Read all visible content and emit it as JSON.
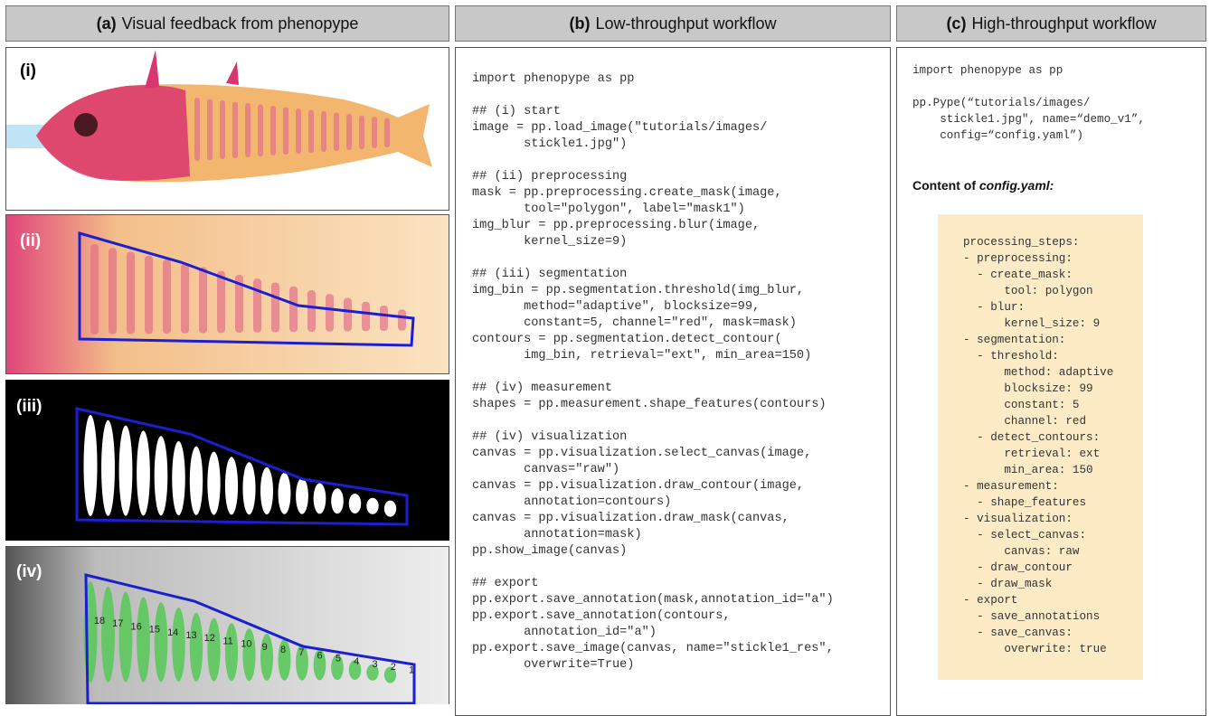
{
  "panel_a": {
    "label": "(a)",
    "title": "Visual feedback from phenopype",
    "images": [
      {
        "label": "(i)"
      },
      {
        "label": "(ii)"
      },
      {
        "label": "(iii)"
      },
      {
        "label": "(iv)"
      }
    ],
    "contour_numbers": [
      "18",
      "17",
      "16",
      "15",
      "14",
      "13",
      "12",
      "11",
      "10",
      "9",
      "8",
      "7",
      "6",
      "5",
      "4",
      "3",
      "2",
      "1"
    ]
  },
  "panel_b": {
    "label": "(b)",
    "title": "Low-throughput workflow",
    "code_blocks": [
      [
        "import phenopype as pp"
      ],
      [
        "## (i) start",
        "image = pp.load_image(\"tutorials/images/",
        "       stickle1.jpg\")"
      ],
      [
        "## (ii) preprocessing",
        "mask = pp.preprocessing.create_mask(image,",
        "       tool=\"polygon\", label=\"mask1\")",
        "img_blur = pp.preprocessing.blur(image,",
        "       kernel_size=9)"
      ],
      [
        "## (iii) segmentation",
        "img_bin = pp.segmentation.threshold(img_blur,",
        "       method=\"adaptive\", blocksize=99,",
        "       constant=5, channel=\"red\", mask=mask)",
        "contours = pp.segmentation.detect_contour(",
        "       img_bin, retrieval=\"ext\", min_area=150)"
      ],
      [
        "## (iv) measurement",
        "shapes = pp.measurement.shape_features(contours)"
      ],
      [
        "## (iv) visualization",
        "canvas = pp.visualization.select_canvas(image,",
        "       canvas=\"raw\")",
        "canvas = pp.visualization.draw_contour(image,",
        "       annotation=contours)",
        "canvas = pp.visualization.draw_mask(canvas,",
        "       annotation=mask)",
        "pp.show_image(canvas)"
      ],
      [
        "## export",
        "pp.export.save_annotation(mask,annotation_id=\"a\")",
        "pp.export.save_annotation(contours,",
        "       annotation_id=\"a\")",
        "pp.export.save_image(canvas, name=\"stickle1_res\",",
        "       overwrite=True)"
      ]
    ]
  },
  "panel_c": {
    "label": "(c)",
    "title": "High-throughput workflow",
    "code_blocks": [
      [
        "import phenopype as pp"
      ],
      [
        "pp.Pype(“tutorials/images/",
        "    stickle1.jpg\", name=“demo_v1”,",
        "    config=“config.yaml”)"
      ]
    ],
    "config_heading": {
      "text": "Content of ",
      "file": "config.yaml:"
    },
    "config_lines": [
      "processing_steps:",
      "- preprocessing:",
      "  - create_mask:",
      "      tool: polygon",
      "  - blur:",
      "      kernel_size: 9",
      "- segmentation:",
      "  - threshold:",
      "      method: adaptive",
      "      blocksize: 99",
      "      constant: 5",
      "      channel: red",
      "  - detect_contours:",
      "      retrieval: ext",
      "      min_area: 150",
      "- measurement:",
      "  - shape_features",
      "- visualization:",
      "  - select_canvas:",
      "      canvas: raw",
      "  - draw_contour",
      "  - draw_mask",
      "- export",
      "  - save_annotations",
      "  - save_canvas:",
      "      overwrite: true"
    ]
  }
}
